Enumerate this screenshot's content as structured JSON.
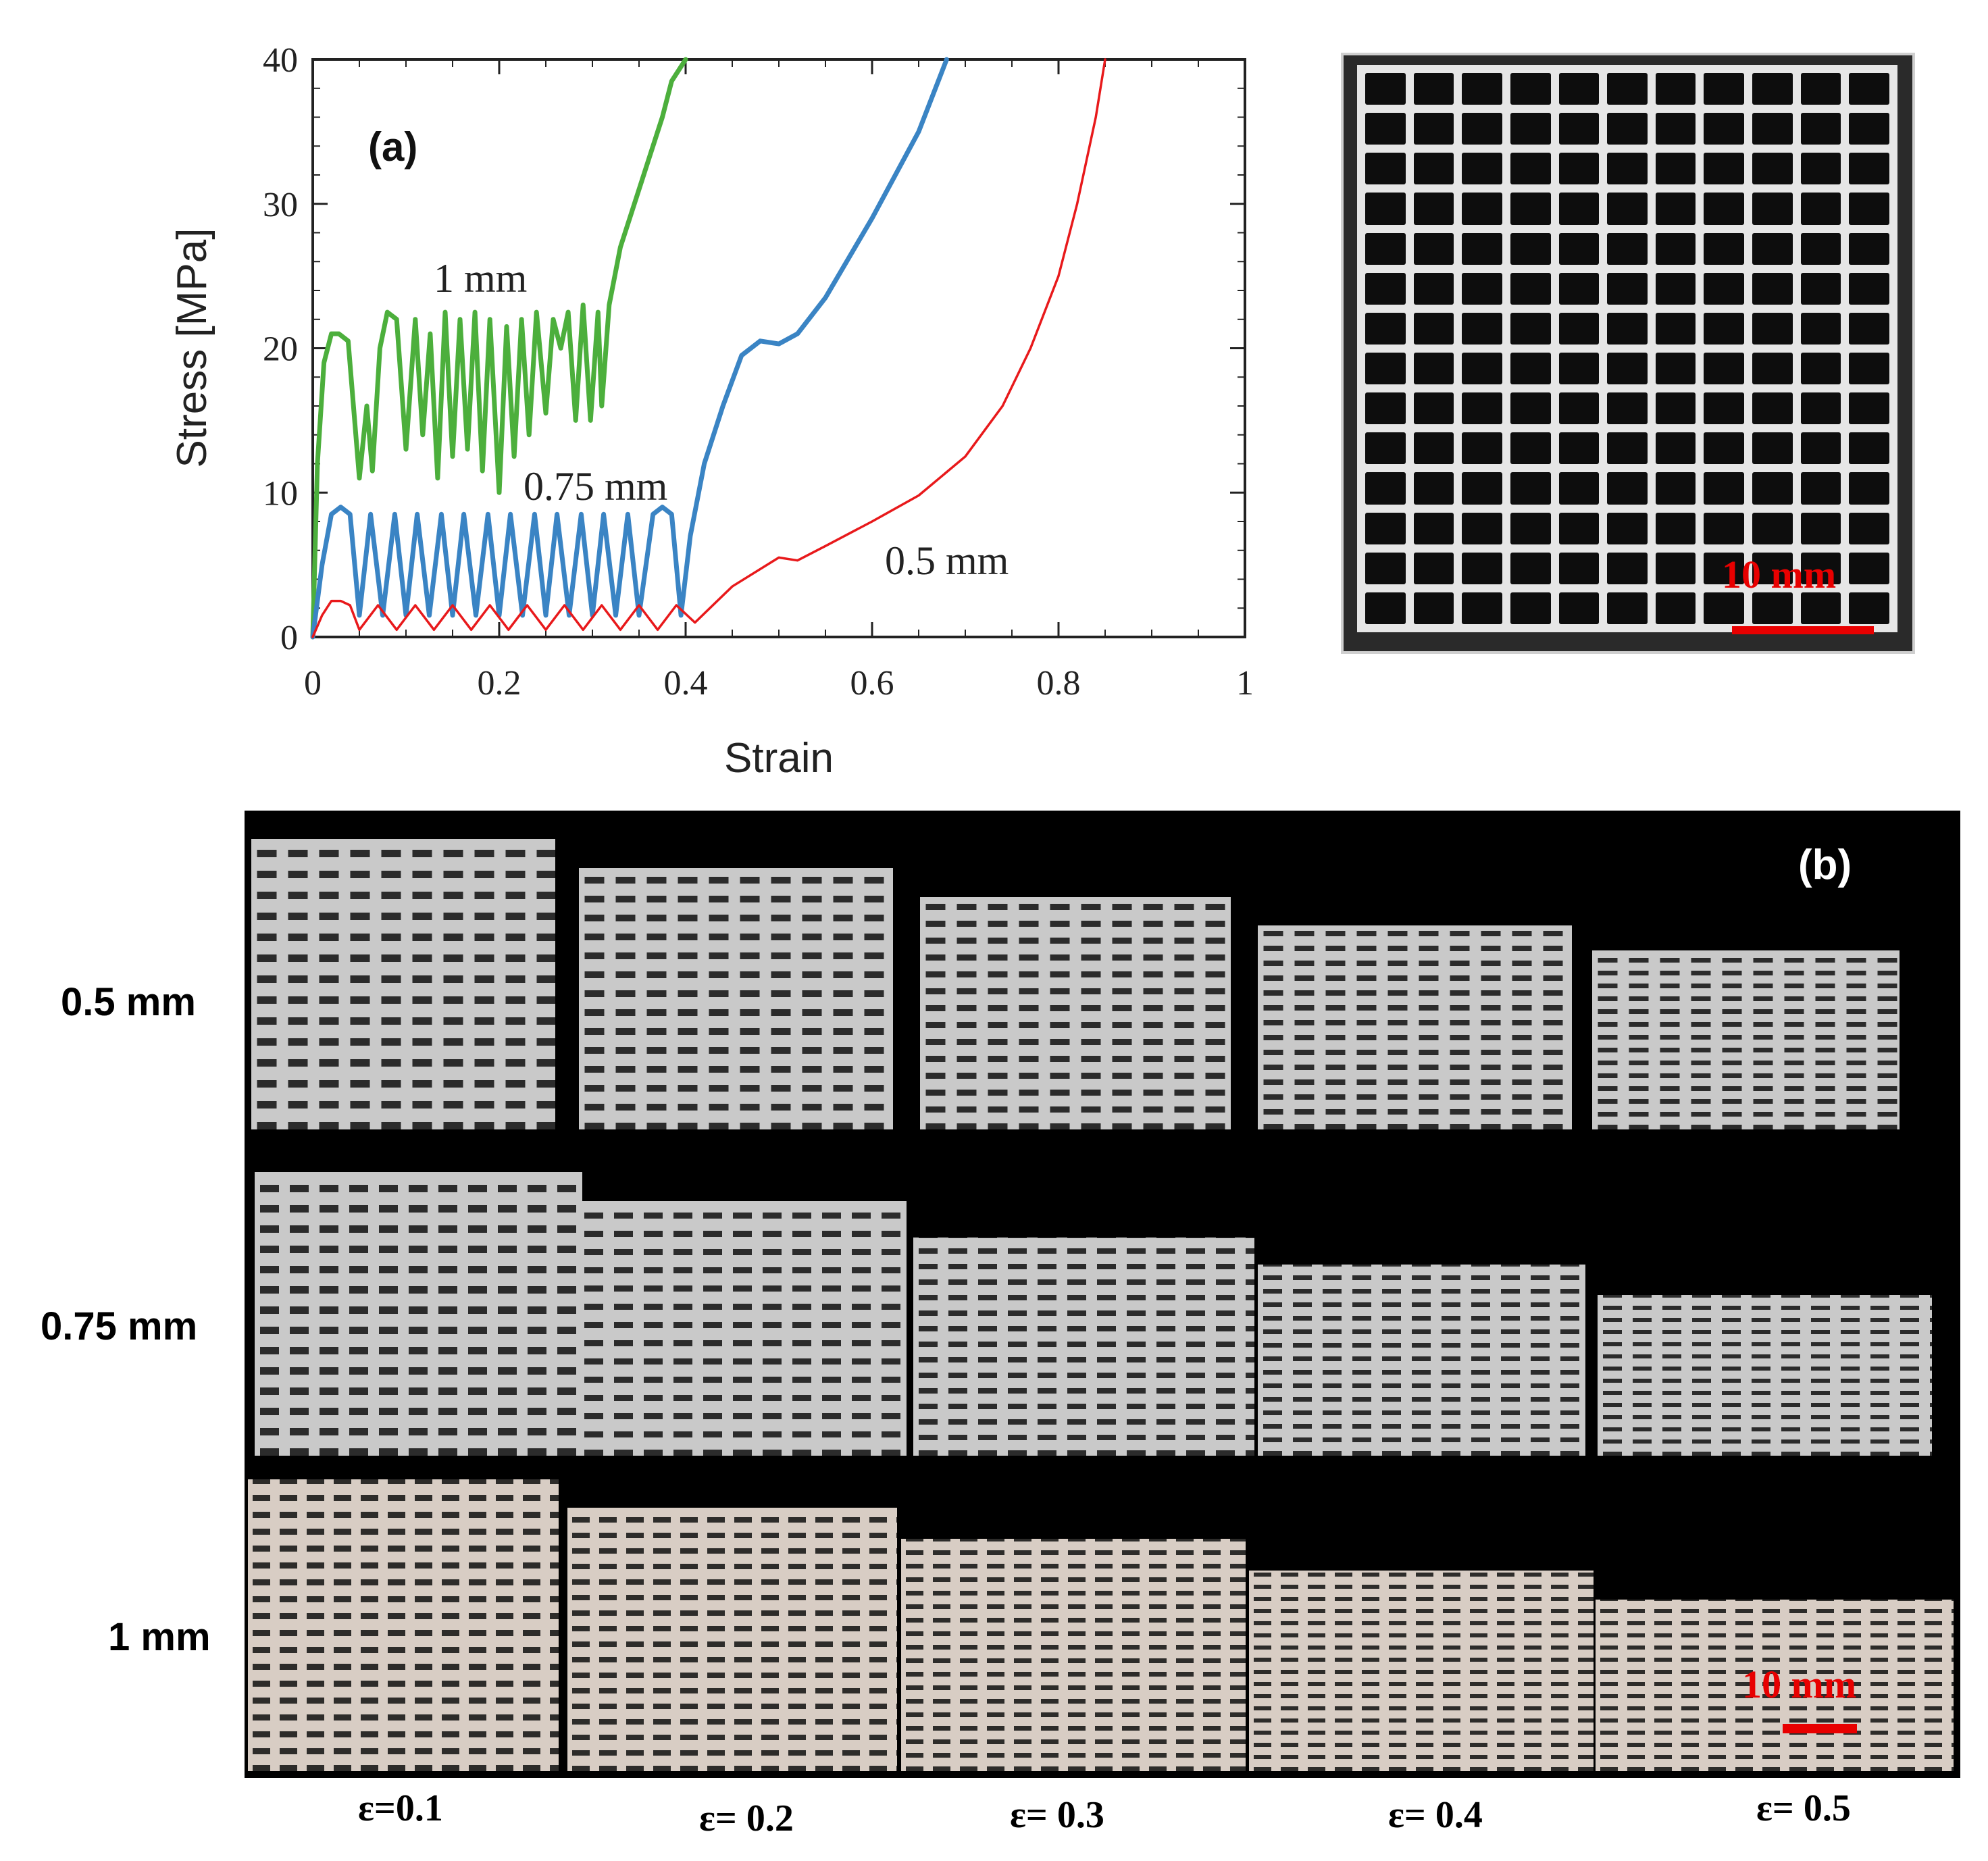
{
  "chart_data": {
    "type": "line",
    "panel_label": "(a)",
    "xlabel": "Strain",
    "ylabel": "Stress [MPa]",
    "xlim": [
      0,
      1
    ],
    "ylim": [
      0,
      40
    ],
    "xticks": [
      0,
      0.2,
      0.4,
      0.6,
      0.8,
      1
    ],
    "xtick_labels": [
      "0",
      "0.2",
      "0.4",
      "0.6",
      "0.8",
      "1"
    ],
    "yticks": [
      0,
      10,
      20,
      30,
      40
    ],
    "ytick_labels": [
      "0",
      "10",
      "20",
      "30",
      "40"
    ],
    "series": [
      {
        "name": "1 mm",
        "color": "#4caf3c",
        "x": [
          0,
          0.005,
          0.012,
          0.02,
          0.028,
          0.038,
          0.05,
          0.058,
          0.064,
          0.072,
          0.08,
          0.09,
          0.1,
          0.11,
          0.118,
          0.126,
          0.134,
          0.142,
          0.15,
          0.158,
          0.166,
          0.174,
          0.182,
          0.19,
          0.2,
          0.208,
          0.216,
          0.224,
          0.232,
          0.24,
          0.25,
          0.258,
          0.266,
          0.274,
          0.282,
          0.29,
          0.298,
          0.306,
          0.31,
          0.318,
          0.33,
          0.345,
          0.36,
          0.375,
          0.385,
          0.4
        ],
        "values": [
          0,
          12,
          19,
          21,
          21,
          20.5,
          11,
          16,
          11.5,
          20,
          22.5,
          22,
          13,
          22,
          14,
          21,
          11,
          22.5,
          12.5,
          22,
          13,
          22.5,
          11.5,
          22,
          10,
          21.5,
          12.5,
          22,
          14,
          22.5,
          15.5,
          22,
          20,
          22.5,
          15,
          23,
          15,
          22.5,
          16,
          23,
          27,
          30,
          33,
          36,
          38.5,
          40
        ]
      },
      {
        "name": "0.75 mm",
        "color": "#3a84c4",
        "x": [
          0,
          0.01,
          0.02,
          0.03,
          0.04,
          0.05,
          0.062,
          0.075,
          0.088,
          0.1,
          0.112,
          0.125,
          0.138,
          0.15,
          0.162,
          0.175,
          0.188,
          0.2,
          0.212,
          0.225,
          0.238,
          0.25,
          0.262,
          0.275,
          0.288,
          0.3,
          0.312,
          0.325,
          0.338,
          0.35,
          0.365,
          0.375,
          0.385,
          0.395,
          0.405,
          0.42,
          0.44,
          0.46,
          0.48,
          0.5,
          0.52,
          0.55,
          0.6,
          0.65,
          0.68
        ],
        "values": [
          0,
          5,
          8.5,
          9,
          8.5,
          1.5,
          8.5,
          1.5,
          8.5,
          1.5,
          8.5,
          1.5,
          8.5,
          1.5,
          8.5,
          1.5,
          8.5,
          1.5,
          8.5,
          1.5,
          8.5,
          1.5,
          8.5,
          1.5,
          8.5,
          1.5,
          8.5,
          1.5,
          8.5,
          1.5,
          8.5,
          9,
          8.5,
          1.5,
          7,
          12,
          16,
          19.5,
          20.5,
          20.3,
          21,
          23.5,
          29,
          35,
          40
        ]
      },
      {
        "name": "0.5 mm",
        "color": "#e8191b",
        "x": [
          0,
          0.01,
          0.02,
          0.03,
          0.04,
          0.05,
          0.07,
          0.09,
          0.11,
          0.13,
          0.15,
          0.17,
          0.19,
          0.21,
          0.23,
          0.25,
          0.27,
          0.29,
          0.31,
          0.33,
          0.35,
          0.37,
          0.39,
          0.41,
          0.45,
          0.5,
          0.52,
          0.55,
          0.6,
          0.65,
          0.7,
          0.74,
          0.77,
          0.8,
          0.82,
          0.84,
          0.85
        ],
        "values": [
          0,
          1.5,
          2.5,
          2.5,
          2.2,
          0.5,
          2.2,
          0.5,
          2.2,
          0.5,
          2.2,
          0.5,
          2.2,
          0.5,
          2.2,
          0.5,
          2.2,
          0.5,
          2.2,
          0.5,
          2.2,
          0.5,
          2.2,
          1,
          3.5,
          5.5,
          5.3,
          6.3,
          8,
          9.8,
          12.5,
          16,
          20,
          25,
          30,
          36,
          40
        ]
      }
    ]
  },
  "series_labels": {
    "s1": "1 mm",
    "s075": "0.75 mm",
    "s05": "0.5 mm"
  },
  "specimen_photo": {
    "scale_label": "10 mm"
  },
  "panel_b": {
    "label": "(b)",
    "scale_label": "10 mm",
    "row_labels": [
      "0.5 mm",
      "0.75 mm",
      "1 mm"
    ],
    "strain_labels": [
      "ε=0.1",
      "ε= 0.2",
      "ε= 0.3",
      "ε= 0.4",
      "ε= 0.5"
    ]
  },
  "colors": {
    "green": "#4caf3c",
    "blue": "#3a84c4",
    "red": "#e8191b",
    "scale_red": "#e80000"
  }
}
